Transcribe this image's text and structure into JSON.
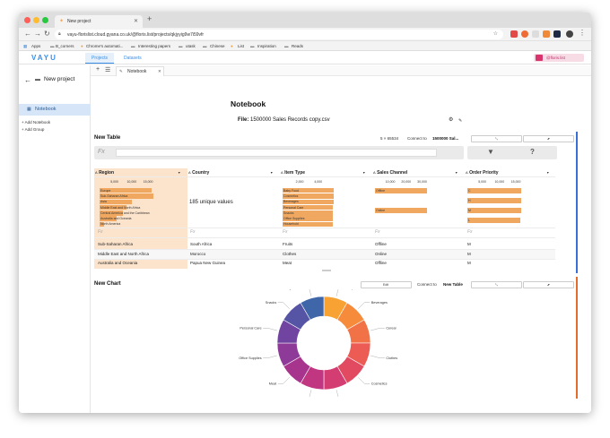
{
  "browser": {
    "tab_title": "New project",
    "url": "vayu-floris​list.cloud.gyana.co.uk/@floris.list/projects/qkjyyig9w7i59vfr",
    "bookmarks": [
      "Apps",
      "B_corners",
      "Chrome's automati...",
      "Interesting papers",
      "utask",
      "Chinese",
      "List",
      "Inspiration",
      "Reads"
    ]
  },
  "app": {
    "logo": "VAYU",
    "nav_tabs": [
      "Projects",
      "Datasets"
    ],
    "user": "@floris.list"
  },
  "sidebar": {
    "project_title": "New project",
    "items": [
      {
        "label": "Notebook"
      }
    ],
    "add_notebook": "Add Notebook",
    "add_group": "Add Group"
  },
  "main": {
    "tab_label": "Notebook",
    "page_title": "Notebook",
    "file_prefix": "File:",
    "file_name": "1500000 Sales Records copy.csv"
  },
  "table": {
    "title": "New Table",
    "dims": "5 × 65534",
    "connect_prefix": "Connect to",
    "connect_target": "1500000 Sal...",
    "fx": "Fx",
    "columns": [
      {
        "name": "Region",
        "type_icon": "A"
      },
      {
        "name": "Country",
        "type_icon": "A"
      },
      {
        "name": "Item Type",
        "type_icon": "A"
      },
      {
        "name": "Sales Channel",
        "type_icon": "A"
      },
      {
        "name": "Order Priority",
        "type_icon": "A"
      }
    ],
    "region_ticks": [
      "5,000",
      "10,000",
      "15,000"
    ],
    "region_bars": [
      {
        "label": "Europe",
        "value": 16000
      },
      {
        "label": "Sub-Saharan Africa",
        "value": 16500
      },
      {
        "label": "Asia",
        "value": 9800
      },
      {
        "label": "Middle East and North Africa",
        "value": 8100
      },
      {
        "label": "Central America and the Caribbean",
        "value": 7100
      },
      {
        "label": "Australia and Oceania",
        "value": 5300
      },
      {
        "label": "North America",
        "value": 1400
      }
    ],
    "country_summary": "185 unique values",
    "item_ticks": [
      "2,000",
      "4,000"
    ],
    "item_bars": [
      {
        "label": "Baby Food",
        "value": 5500
      },
      {
        "label": "Cosmetics",
        "value": 5500
      },
      {
        "label": "Beverages",
        "value": 5500
      },
      {
        "label": "Personal Care",
        "value": 5450
      },
      {
        "label": "Snacks",
        "value": 5450
      },
      {
        "label": "Office Supplies",
        "value": 5450
      },
      {
        "label": "Household",
        "value": 5450
      }
    ],
    "channel_ticks": [
      "10,000",
      "20,000",
      "30,000"
    ],
    "channel_bars": [
      {
        "label": "Offline",
        "value": 32900
      },
      {
        "label": "Online",
        "value": 32700
      }
    ],
    "priority_ticks": [
      "5,000",
      "10,000",
      "15,000"
    ],
    "priority_bars": [
      {
        "label": "C",
        "value": 16400
      },
      {
        "label": "H",
        "value": 16400
      },
      {
        "label": "M",
        "value": 16400
      },
      {
        "label": "L",
        "value": 16300
      }
    ],
    "rows": [
      [
        "Sub-Saharan Africa",
        "South Africa",
        "Fruits",
        "Offline",
        "M"
      ],
      [
        "Middle East and North Africa",
        "Morocco",
        "Clothes",
        "Online",
        "M"
      ],
      [
        "Australia and Oceania",
        "Papua New Guinea",
        "Meat",
        "Offline",
        "M"
      ]
    ]
  },
  "chart": {
    "title": "New Chart",
    "edit_label": "Edit",
    "connect_prefix": "Connect to",
    "connect_target": "New Table"
  },
  "chart_data": {
    "type": "pie",
    "categories": [
      "Baby Food",
      "Beverages",
      "Cereal",
      "Clothes",
      "Cosmetics",
      "Fruits",
      "Household",
      "Meat",
      "Office Supplies",
      "Personal Care",
      "Snacks",
      "Vegetables"
    ],
    "values": [
      1,
      1,
      1,
      1,
      1,
      1,
      1,
      1,
      1,
      1,
      1,
      1
    ],
    "colors": [
      "#f7a233",
      "#f58b3b",
      "#f27247",
      "#ec5b54",
      "#e24a62",
      "#d43d72",
      "#c13681",
      "#a8358d",
      "#8d3a98",
      "#7044a0",
      "#5654a5",
      "#3f66a8"
    ],
    "title": "",
    "xlabel": "",
    "ylabel": ""
  }
}
